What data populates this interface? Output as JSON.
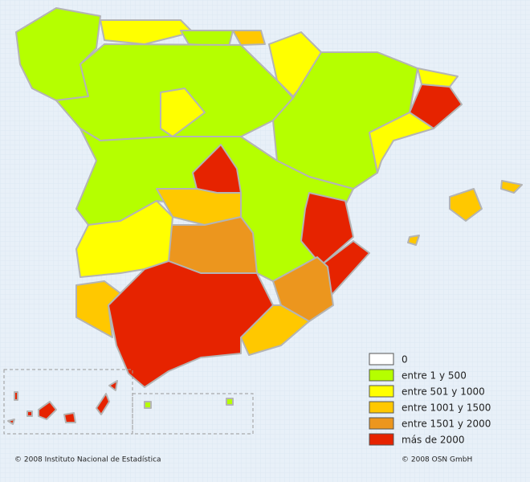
{
  "legend": {
    "items": [
      {
        "label": "0",
        "color": "#ffffff"
      },
      {
        "label": "entre 1 y 500",
        "color": "#b5ff00"
      },
      {
        "label": "entre 501 y 1000",
        "color": "#ffff00"
      },
      {
        "label": "entre 1001 y 1500",
        "color": "#ffc800"
      },
      {
        "label": "entre 1501 y 2000",
        "color": "#ec961e"
      },
      {
        "label": "más de 2000",
        "color": "#e62300"
      }
    ]
  },
  "footer": {
    "left": "© 2008 Instituto Nacional de Estadística",
    "right": "© 2008 OSN GmbH"
  }
}
